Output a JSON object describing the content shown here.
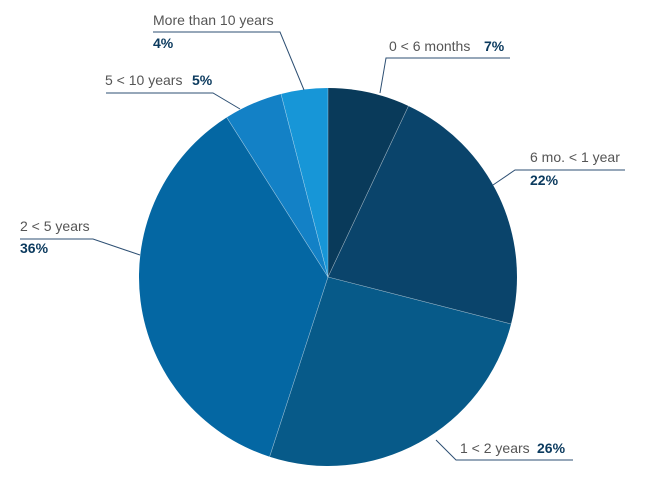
{
  "chart_data": {
    "type": "pie",
    "start_angle_deg": 0,
    "direction": "clockwise",
    "value_color": "#0b3a5e",
    "slices": [
      {
        "label": "0 < 6 months",
        "value": 7,
        "value_label": "7%",
        "color": "#093a5a"
      },
      {
        "label": "6 mo. < 1 year",
        "value": 22,
        "value_label": "22%",
        "color": "#0a446b"
      },
      {
        "label": "1 < 2 years",
        "value": 26,
        "value_label": "26%",
        "color": "#075a89"
      },
      {
        "label": "2 < 5 years",
        "value": 36,
        "value_label": "36%",
        "color": "#0467a3"
      },
      {
        "label": "5 < 10 years",
        "value": 5,
        "value_label": "5%",
        "color": "#1381c6"
      },
      {
        "label": "More than 10 years",
        "value": 4,
        "value_label": "4%",
        "color": "#1796d7"
      }
    ]
  }
}
